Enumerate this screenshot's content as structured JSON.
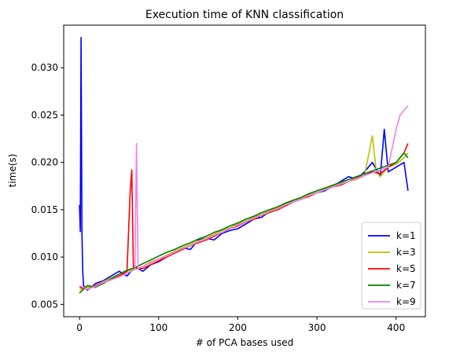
{
  "chart_data": {
    "type": "line",
    "title": "Execution time of KNN classification",
    "xlabel": "# of PCA bases used",
    "ylabel": "time(s)",
    "xlim": [
      -20,
      437
    ],
    "ylim": [
      0.0037,
      0.0345
    ],
    "xticks": [
      0,
      100,
      200,
      300,
      400
    ],
    "xtick_labels": [
      "0",
      "100",
      "200",
      "300",
      "400"
    ],
    "yticks": [
      0.005,
      0.01,
      0.015,
      0.02,
      0.025,
      0.03
    ],
    "ytick_labels": [
      "0.005",
      "0.010",
      "0.015",
      "0.020",
      "0.025",
      "0.030"
    ],
    "grid": false,
    "legend_position": "lower-right",
    "series": [
      {
        "name": "k=1",
        "color": "#0000ff",
        "x": [
          0,
          1,
          2,
          3,
          4,
          5,
          10,
          20,
          30,
          40,
          50,
          60,
          70,
          80,
          90,
          100,
          110,
          120,
          130,
          140,
          150,
          160,
          170,
          180,
          190,
          200,
          210,
          220,
          230,
          240,
          250,
          260,
          270,
          280,
          290,
          300,
          310,
          320,
          330,
          340,
          350,
          360,
          370,
          380,
          385,
          390,
          400,
          410,
          415
        ],
        "y": [
          0.0155,
          0.0127,
          0.0332,
          0.0127,
          0.0085,
          0.007,
          0.0065,
          0.0072,
          0.0075,
          0.008,
          0.0085,
          0.008,
          0.009,
          0.0085,
          0.0092,
          0.0095,
          0.01,
          0.0105,
          0.011,
          0.0108,
          0.0118,
          0.012,
          0.0118,
          0.0125,
          0.0128,
          0.013,
          0.0135,
          0.014,
          0.0142,
          0.0148,
          0.015,
          0.0155,
          0.016,
          0.0162,
          0.0165,
          0.0168,
          0.017,
          0.0175,
          0.018,
          0.0185,
          0.0182,
          0.019,
          0.02,
          0.0185,
          0.0235,
          0.019,
          0.0195,
          0.02,
          0.017
        ]
      },
      {
        "name": "k=3",
        "color": "#bfbf00",
        "x": [
          0,
          10,
          20,
          30,
          40,
          50,
          60,
          70,
          80,
          90,
          100,
          110,
          120,
          130,
          140,
          150,
          160,
          170,
          180,
          190,
          200,
          210,
          220,
          230,
          240,
          250,
          260,
          270,
          280,
          290,
          300,
          310,
          320,
          330,
          340,
          350,
          360,
          370,
          375,
          380,
          390,
          400,
          410,
          415
        ],
        "y": [
          0.0065,
          0.0068,
          0.007,
          0.0074,
          0.0078,
          0.0082,
          0.0085,
          0.0088,
          0.009,
          0.0095,
          0.0098,
          0.0102,
          0.0106,
          0.011,
          0.0113,
          0.0117,
          0.012,
          0.0124,
          0.0128,
          0.0131,
          0.0135,
          0.0138,
          0.0142,
          0.0145,
          0.0149,
          0.0152,
          0.0156,
          0.016,
          0.0162,
          0.0166,
          0.017,
          0.0172,
          0.0175,
          0.0178,
          0.018,
          0.0182,
          0.0186,
          0.0228,
          0.019,
          0.0185,
          0.0195,
          0.0198,
          0.0205,
          0.021
        ]
      },
      {
        "name": "k=5",
        "color": "#ff0000",
        "x": [
          0,
          10,
          20,
          30,
          40,
          50,
          60,
          64,
          66,
          68,
          70,
          80,
          90,
          100,
          110,
          120,
          130,
          140,
          150,
          160,
          170,
          180,
          190,
          200,
          210,
          220,
          230,
          240,
          250,
          260,
          270,
          280,
          290,
          300,
          310,
          320,
          330,
          340,
          350,
          360,
          370,
          380,
          390,
          400,
          410,
          415
        ],
        "y": [
          0.0068,
          0.0066,
          0.007,
          0.0073,
          0.0076,
          0.008,
          0.0085,
          0.017,
          0.0192,
          0.009,
          0.0088,
          0.0088,
          0.0092,
          0.0096,
          0.01,
          0.0104,
          0.0108,
          0.0112,
          0.0115,
          0.0118,
          0.0122,
          0.0126,
          0.013,
          0.0133,
          0.0137,
          0.014,
          0.0144,
          0.0147,
          0.015,
          0.0154,
          0.0158,
          0.0161,
          0.0164,
          0.0168,
          0.0171,
          0.0174,
          0.0176,
          0.018,
          0.0184,
          0.0186,
          0.019,
          0.0188,
          0.0195,
          0.02,
          0.021,
          0.022
        ]
      },
      {
        "name": "k=7",
        "color": "#008000",
        "x": [
          0,
          10,
          20,
          30,
          40,
          50,
          60,
          70,
          80,
          90,
          100,
          110,
          120,
          130,
          140,
          150,
          160,
          170,
          180,
          190,
          200,
          210,
          220,
          230,
          240,
          250,
          260,
          270,
          280,
          290,
          300,
          310,
          320,
          330,
          340,
          350,
          360,
          370,
          380,
          390,
          400,
          410,
          415
        ],
        "y": [
          0.0062,
          0.007,
          0.0068,
          0.0072,
          0.0077,
          0.0082,
          0.0086,
          0.0089,
          0.0093,
          0.0097,
          0.0101,
          0.0105,
          0.0108,
          0.0112,
          0.0115,
          0.0119,
          0.0122,
          0.0126,
          0.0129,
          0.0133,
          0.0136,
          0.014,
          0.0143,
          0.0147,
          0.015,
          0.0153,
          0.0157,
          0.016,
          0.0163,
          0.0167,
          0.017,
          0.0173,
          0.0176,
          0.0179,
          0.0182,
          0.0185,
          0.0188,
          0.0191,
          0.0194,
          0.0197,
          0.02,
          0.021,
          0.0205
        ]
      },
      {
        "name": "k=9",
        "color": "#ee82ee",
        "x": [
          0,
          10,
          20,
          30,
          40,
          50,
          60,
          70,
          72,
          74,
          80,
          90,
          100,
          110,
          120,
          130,
          140,
          150,
          160,
          170,
          180,
          190,
          200,
          210,
          220,
          230,
          240,
          250,
          260,
          270,
          280,
          290,
          300,
          310,
          320,
          330,
          340,
          350,
          360,
          370,
          380,
          390,
          400,
          405,
          410,
          415
        ],
        "y": [
          0.007,
          0.0066,
          0.0069,
          0.0073,
          0.0076,
          0.0079,
          0.0083,
          0.0087,
          0.022,
          0.0088,
          0.009,
          0.0094,
          0.0098,
          0.0101,
          0.0105,
          0.0109,
          0.0112,
          0.0116,
          0.0119,
          0.0123,
          0.0126,
          0.013,
          0.0134,
          0.0137,
          0.0141,
          0.0144,
          0.0148,
          0.0151,
          0.0155,
          0.0158,
          0.0161,
          0.0165,
          0.0168,
          0.0171,
          0.0174,
          0.0177,
          0.018,
          0.0183,
          0.0186,
          0.0189,
          0.0192,
          0.0195,
          0.0235,
          0.025,
          0.0255,
          0.026
        ]
      }
    ]
  }
}
